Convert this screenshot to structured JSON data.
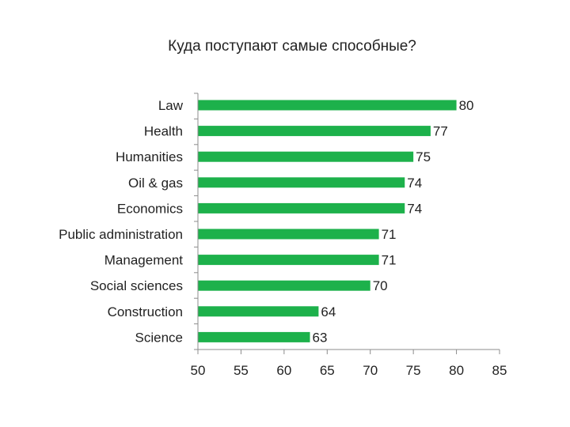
{
  "chart_data": {
    "type": "bar",
    "orientation": "horizontal",
    "title": "Куда поступают самые способные?",
    "categories": [
      "Law",
      "Health",
      "Humanities",
      "Oil & gas",
      "Economics",
      "Public administration",
      "Management",
      "Social sciences",
      "Construction",
      "Science"
    ],
    "values": [
      80,
      77,
      75,
      74,
      74,
      71,
      71,
      70,
      64,
      63
    ],
    "xlim": [
      50,
      85
    ],
    "xticks": [
      50,
      55,
      60,
      65,
      70,
      75,
      80,
      85
    ],
    "bar_color": "#1db14b",
    "grid": false,
    "legend": "none"
  }
}
